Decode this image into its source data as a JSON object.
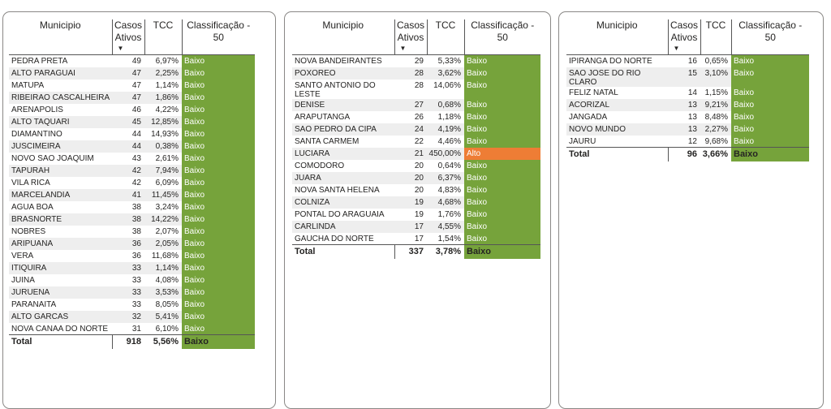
{
  "headers": {
    "municipio": "Municipio",
    "casos": "Casos Ativos",
    "tcc": "TCC",
    "classificacao": "Classificação - 50",
    "sort_indicator": "▼"
  },
  "colors": {
    "baixo": "#76a33b",
    "alto": "#ee7d35"
  },
  "tables": [
    {
      "rows": [
        {
          "municipio": "PEDRA PRETA",
          "casos": "49",
          "tcc": "6,97%",
          "classificacao": "Baixo"
        },
        {
          "municipio": "ALTO PARAGUAI",
          "casos": "47",
          "tcc": "2,25%",
          "classificacao": "Baixo"
        },
        {
          "municipio": "MATUPA",
          "casos": "47",
          "tcc": "1,14%",
          "classificacao": "Baixo"
        },
        {
          "municipio": "RIBEIRAO CASCALHEIRA",
          "casos": "47",
          "tcc": "1,86%",
          "classificacao": "Baixo"
        },
        {
          "municipio": "ARENAPOLIS",
          "casos": "46",
          "tcc": "4,22%",
          "classificacao": "Baixo"
        },
        {
          "municipio": "ALTO TAQUARI",
          "casos": "45",
          "tcc": "12,85%",
          "classificacao": "Baixo"
        },
        {
          "municipio": "DIAMANTINO",
          "casos": "44",
          "tcc": "14,93%",
          "classificacao": "Baixo"
        },
        {
          "municipio": "JUSCIMEIRA",
          "casos": "44",
          "tcc": "0,38%",
          "classificacao": "Baixo"
        },
        {
          "municipio": "NOVO SAO JOAQUIM",
          "casos": "43",
          "tcc": "2,61%",
          "classificacao": "Baixo"
        },
        {
          "municipio": "TAPURAH",
          "casos": "42",
          "tcc": "7,94%",
          "classificacao": "Baixo"
        },
        {
          "municipio": "VILA RICA",
          "casos": "42",
          "tcc": "6,09%",
          "classificacao": "Baixo"
        },
        {
          "municipio": "MARCELANDIA",
          "casos": "41",
          "tcc": "11,45%",
          "classificacao": "Baixo"
        },
        {
          "municipio": "AGUA BOA",
          "casos": "38",
          "tcc": "3,24%",
          "classificacao": "Baixo"
        },
        {
          "municipio": "BRASNORTE",
          "casos": "38",
          "tcc": "14,22%",
          "classificacao": "Baixo"
        },
        {
          "municipio": "NOBRES",
          "casos": "38",
          "tcc": "2,07%",
          "classificacao": "Baixo"
        },
        {
          "municipio": "ARIPUANA",
          "casos": "36",
          "tcc": "2,05%",
          "classificacao": "Baixo"
        },
        {
          "municipio": "VERA",
          "casos": "36",
          "tcc": "11,68%",
          "classificacao": "Baixo"
        },
        {
          "municipio": "ITIQUIRA",
          "casos": "33",
          "tcc": "1,14%",
          "classificacao": "Baixo"
        },
        {
          "municipio": "JUINA",
          "casos": "33",
          "tcc": "4,08%",
          "classificacao": "Baixo"
        },
        {
          "municipio": "JURUENA",
          "casos": "33",
          "tcc": "3,53%",
          "classificacao": "Baixo"
        },
        {
          "municipio": "PARANAITA",
          "casos": "33",
          "tcc": "8,05%",
          "classificacao": "Baixo"
        },
        {
          "municipio": "ALTO GARCAS",
          "casos": "32",
          "tcc": "5,41%",
          "classificacao": "Baixo"
        },
        {
          "municipio": "NOVA CANAA DO NORTE",
          "casos": "31",
          "tcc": "6,10%",
          "classificacao": "Baixo"
        }
      ],
      "total": {
        "label": "Total",
        "casos": "918",
        "tcc": "5,56%",
        "classificacao": "Baixo"
      }
    },
    {
      "rows": [
        {
          "municipio": "NOVA BANDEIRANTES",
          "casos": "29",
          "tcc": "5,33%",
          "classificacao": "Baixo"
        },
        {
          "municipio": "POXOREO",
          "casos": "28",
          "tcc": "3,62%",
          "classificacao": "Baixo"
        },
        {
          "municipio": "SANTO ANTONIO DO LESTE",
          "casos": "28",
          "tcc": "14,06%",
          "classificacao": "Baixo"
        },
        {
          "municipio": "DENISE",
          "casos": "27",
          "tcc": "0,68%",
          "classificacao": "Baixo"
        },
        {
          "municipio": "ARAPUTANGA",
          "casos": "26",
          "tcc": "1,18%",
          "classificacao": "Baixo"
        },
        {
          "municipio": "SAO PEDRO DA CIPA",
          "casos": "24",
          "tcc": "4,19%",
          "classificacao": "Baixo"
        },
        {
          "municipio": "SANTA CARMEM",
          "casos": "22",
          "tcc": "4,46%",
          "classificacao": "Baixo"
        },
        {
          "municipio": "LUCIARA",
          "casos": "21",
          "tcc": "450,00%",
          "classificacao": "Alto"
        },
        {
          "municipio": "COMODORO",
          "casos": "20",
          "tcc": "0,64%",
          "classificacao": "Baixo"
        },
        {
          "municipio": "JUARA",
          "casos": "20",
          "tcc": "6,37%",
          "classificacao": "Baixo"
        },
        {
          "municipio": "NOVA SANTA HELENA",
          "casos": "20",
          "tcc": "4,83%",
          "classificacao": "Baixo"
        },
        {
          "municipio": "COLNIZA",
          "casos": "19",
          "tcc": "4,68%",
          "classificacao": "Baixo"
        },
        {
          "municipio": "PONTAL DO ARAGUAIA",
          "casos": "19",
          "tcc": "1,76%",
          "classificacao": "Baixo"
        },
        {
          "municipio": "CARLINDA",
          "casos": "17",
          "tcc": "4,55%",
          "classificacao": "Baixo"
        },
        {
          "municipio": "GAUCHA DO NORTE",
          "casos": "17",
          "tcc": "1,54%",
          "classificacao": "Baixo"
        }
      ],
      "total": {
        "label": "Total",
        "casos": "337",
        "tcc": "3,78%",
        "classificacao": "Baixo"
      }
    },
    {
      "rows": [
        {
          "municipio": "IPIRANGA DO NORTE",
          "casos": "16",
          "tcc": "0,65%",
          "classificacao": "Baixo"
        },
        {
          "municipio": "SAO JOSE DO RIO CLARO",
          "casos": "15",
          "tcc": "3,10%",
          "classificacao": "Baixo"
        },
        {
          "municipio": "FELIZ NATAL",
          "casos": "14",
          "tcc": "1,15%",
          "classificacao": "Baixo"
        },
        {
          "municipio": "ACORIZAL",
          "casos": "13",
          "tcc": "9,21%",
          "classificacao": "Baixo"
        },
        {
          "municipio": "JANGADA",
          "casos": "13",
          "tcc": "8,48%",
          "classificacao": "Baixo"
        },
        {
          "municipio": "NOVO MUNDO",
          "casos": "13",
          "tcc": "2,27%",
          "classificacao": "Baixo"
        },
        {
          "municipio": "JAURU",
          "casos": "12",
          "tcc": "9,68%",
          "classificacao": "Baixo"
        }
      ],
      "total": {
        "label": "Total",
        "casos": "96",
        "tcc": "3,66%",
        "classificacao": "Baixo"
      }
    }
  ]
}
